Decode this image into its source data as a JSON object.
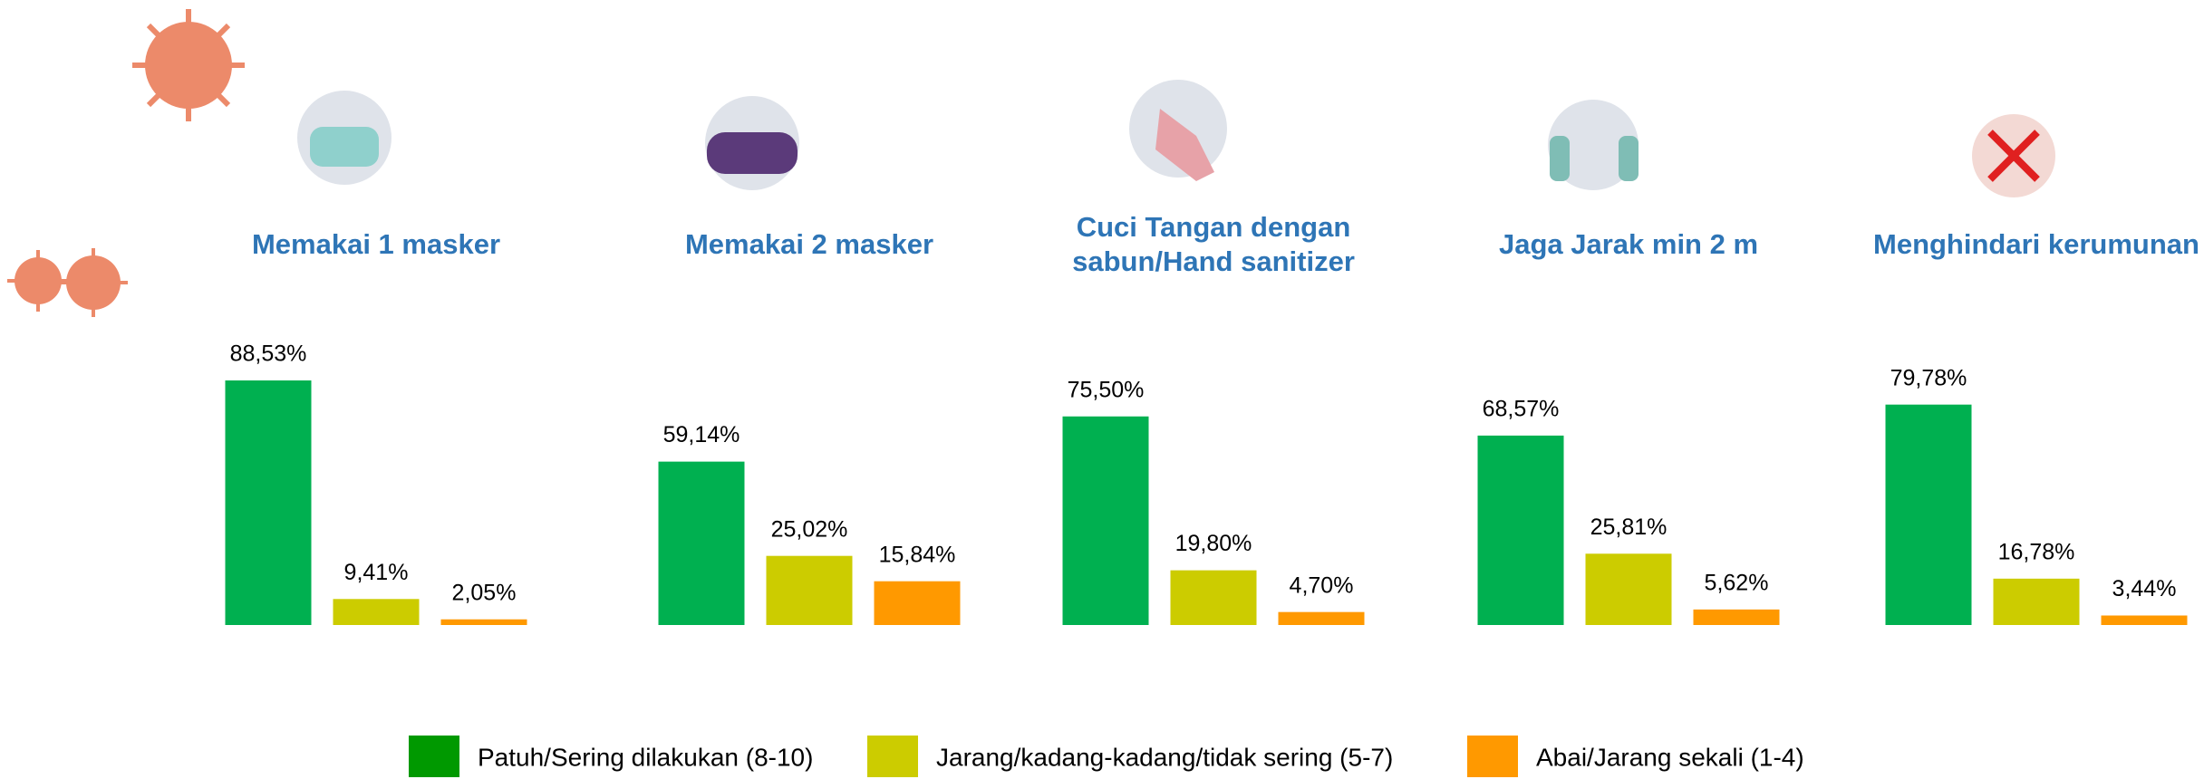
{
  "chart_data": {
    "type": "bar",
    "categories": [
      "Memakai 1 masker",
      "Memakai 2 masker",
      "Cuci Tangan dengan sabun/Hand sanitizer",
      "Jaga Jarak min 2 m",
      "Menghindari kerumunan"
    ],
    "series": [
      {
        "name": "Patuh/Sering dilakukan (8-10)",
        "color": "#00b050",
        "legend_color": "#009900",
        "values": [
          88.53,
          59.14,
          75.5,
          68.57,
          79.78
        ],
        "value_labels": [
          "88,53%",
          "59,14%",
          "75,50%",
          "68,57%",
          "79,78%"
        ]
      },
      {
        "name": "Jarang/kadang-kadang/tidak sering (5-7)",
        "color": "#cccc00",
        "legend_color": "#cccc00",
        "values": [
          9.41,
          25.02,
          19.8,
          25.81,
          16.78
        ],
        "value_labels": [
          "9,41%",
          "25,02%",
          "19,80%",
          "25,81%",
          "16,78%"
        ]
      },
      {
        "name": "Abai/Jarang sekali (1-4)",
        "color": "#ff9900",
        "legend_color": "#ff9900",
        "values": [
          2.05,
          15.84,
          4.7,
          5.62,
          3.44
        ],
        "value_labels": [
          "2,05%",
          "15,84%",
          "4,70%",
          "5,62%",
          "3,44%"
        ]
      }
    ]
  }
}
